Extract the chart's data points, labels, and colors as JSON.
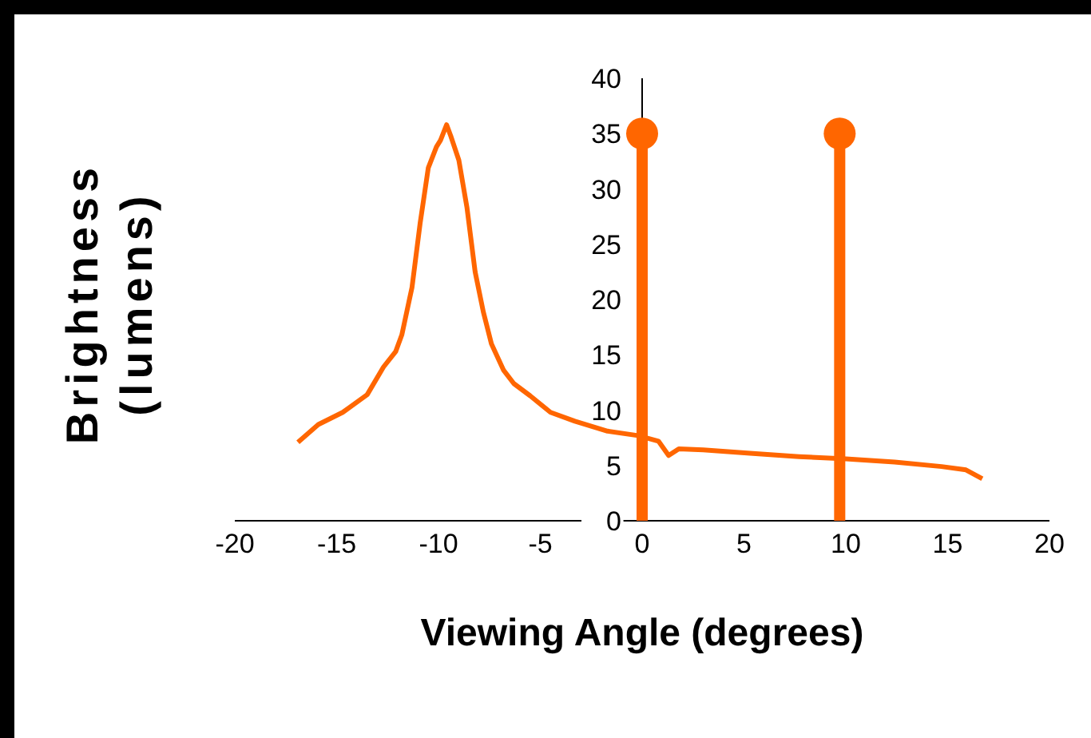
{
  "chart_data": {
    "type": "line",
    "xlabel": "Viewing Angle (degrees)",
    "ylabel": "Brightness (lumens)",
    "xlim": [
      -20,
      20
    ],
    "xticks": [
      -20,
      -15,
      -10,
      -5,
      0,
      5,
      10,
      15,
      20
    ],
    "ylim": [
      0,
      40
    ],
    "yticks": [
      0,
      5,
      10,
      15,
      20,
      25,
      30,
      35,
      40
    ],
    "marker": "none",
    "line_style": "solid",
    "series": [
      {
        "color": "#ff6600",
        "x": [
          -16.9,
          -15.9,
          -14.7,
          -13.5,
          -12.7,
          -12.1,
          -11.8,
          -11.3,
          -10.9,
          -10.5,
          -10.1,
          -9.9,
          -9.6,
          -9.4,
          -9.0,
          -8.6,
          -8.2,
          -7.8,
          -7.4,
          -6.8,
          -6.3,
          -5.5,
          -4.5,
          -3.3,
          -1.7,
          -0.2,
          0.8,
          1.3,
          1.8,
          3.0,
          5.3,
          7.7,
          10.0,
          12.4,
          14.7,
          15.9,
          16.7
        ],
        "values": [
          7.1,
          8.7,
          9.8,
          11.4,
          13.9,
          15.3,
          16.8,
          21.1,
          26.9,
          31.9,
          33.8,
          34.4,
          35.8,
          34.8,
          32.6,
          28.3,
          22.5,
          18.9,
          16.0,
          13.6,
          12.4,
          11.3,
          9.8,
          9.0,
          8.1,
          7.7,
          7.2,
          5.9,
          6.5,
          6.4,
          6.1,
          5.8,
          5.6,
          5.3,
          4.9,
          4.6,
          3.8
        ]
      },
      {
        "type": "lollipop",
        "marker": "circle",
        "color": "#ff6600",
        "x": [
          0,
          9.7
        ],
        "values": [
          35,
          35
        ]
      }
    ]
  }
}
